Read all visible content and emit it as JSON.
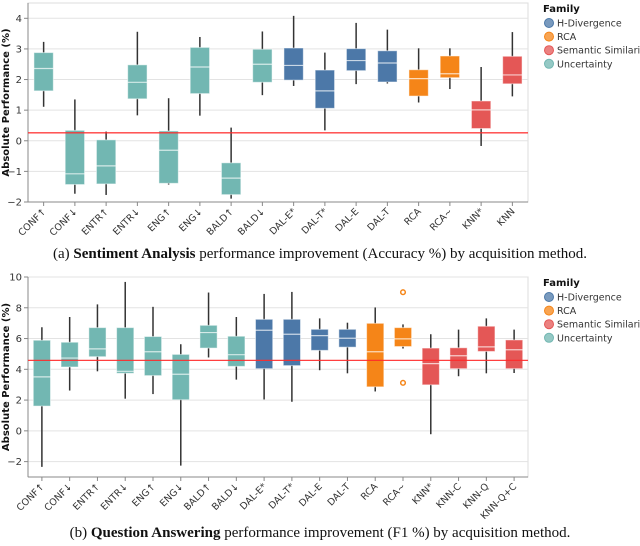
{
  "captions": [
    {
      "prefix": "(a)",
      "bold": "Sentiment Analysis",
      "rest": "performance improvement (Accuracy %) by acquisition method."
    },
    {
      "prefix": "(b)",
      "bold": "Question Answering",
      "rest": "performance improvement (F1 %) by acquisition method."
    }
  ],
  "colors": {
    "Uncertainty": "#72b7b2",
    "H-Divergence": "#4c78a8",
    "RCA": "#f58518",
    "Semantic Similarity": "#e45756",
    "reference_line": "#ff2a2a"
  },
  "chart_data": [
    {
      "type": "boxplot",
      "ylabel": "Absolute Performance (%)",
      "ylim": [
        -2,
        4.5
      ],
      "yticks": [
        -2,
        -1,
        0,
        1,
        2,
        3,
        4
      ],
      "grid": true,
      "reference_line": 0.26,
      "legend": {
        "title": "Family",
        "placement": "right",
        "entries": [
          "H-Divergence",
          "RCA",
          "Semantic Similarity",
          "Uncertainty"
        ]
      },
      "boxes": [
        {
          "label": "CONF↑",
          "family": "Uncertainty",
          "min": 1.11,
          "q1": 1.63,
          "median": 2.36,
          "q3": 2.88,
          "max": 3.23
        },
        {
          "label": "CONF↓",
          "family": "Uncertainty",
          "min": -1.73,
          "q1": -1.43,
          "median": -1.08,
          "q3": 0.34,
          "max": 1.35
        },
        {
          "label": "ENTR↑",
          "family": "Uncertainty",
          "min": -1.77,
          "q1": -1.41,
          "median": -0.82,
          "q3": 0.03,
          "max": 0.3
        },
        {
          "label": "ENTR↓",
          "family": "Uncertainty",
          "min": 0.83,
          "q1": 1.37,
          "median": 1.91,
          "q3": 2.48,
          "max": 3.56
        },
        {
          "label": "ENG↑",
          "family": "Uncertainty",
          "min": -1.43,
          "q1": -1.39,
          "median": -0.31,
          "q3": 0.32,
          "max": 1.39
        },
        {
          "label": "ENG↓",
          "family": "Uncertainty",
          "min": 0.82,
          "q1": 1.54,
          "median": 2.41,
          "q3": 3.05,
          "max": 3.39
        },
        {
          "label": "BALD↑",
          "family": "Uncertainty",
          "min": -1.89,
          "q1": -1.76,
          "median": -1.22,
          "q3": -0.72,
          "max": 0.43
        },
        {
          "label": "BALD↓",
          "family": "Uncertainty",
          "min": 1.49,
          "q1": 1.91,
          "median": 2.5,
          "q3": 2.99,
          "max": 3.57
        },
        {
          "label": "DAL-E*",
          "family": "H-Divergence",
          "min": 1.79,
          "q1": 1.98,
          "median": 2.46,
          "q3": 3.03,
          "max": 4.08
        },
        {
          "label": "DAL-T*",
          "family": "H-Divergence",
          "min": 0.34,
          "q1": 1.06,
          "median": 1.63,
          "q3": 2.31,
          "max": 2.88
        },
        {
          "label": "DAL-E",
          "family": "H-Divergence",
          "min": 1.85,
          "q1": 2.29,
          "median": 2.62,
          "q3": 3.01,
          "max": 3.85
        },
        {
          "label": "DAL-T",
          "family": "H-Divergence",
          "min": 1.87,
          "q1": 1.92,
          "median": 2.54,
          "q3": 2.94,
          "max": 3.63
        },
        {
          "label": "RCA",
          "family": "RCA",
          "min": 1.25,
          "q1": 1.46,
          "median": 2.03,
          "q3": 2.32,
          "max": 3.02
        },
        {
          "label": "RCA~",
          "family": "RCA",
          "min": 1.69,
          "q1": 2.06,
          "median": 2.19,
          "q3": 2.77,
          "max": 3.02
        },
        {
          "label": "KNN*",
          "family": "Semantic Similarity",
          "min": -0.17,
          "q1": 0.4,
          "median": 1.01,
          "q3": 1.3,
          "max": 2.41
        },
        {
          "label": "KNN",
          "family": "Semantic Similarity",
          "min": 1.45,
          "q1": 1.86,
          "median": 2.15,
          "q3": 2.76,
          "max": 3.55
        }
      ]
    },
    {
      "type": "boxplot",
      "ylabel": "Absolute Performance (%)",
      "ylim": [
        -3,
        10
      ],
      "yticks": [
        -2,
        0,
        2,
        4,
        6,
        8,
        10
      ],
      "grid": true,
      "reference_line": 4.58,
      "legend": {
        "title": "Family",
        "placement": "right",
        "entries": [
          "H-Divergence",
          "RCA",
          "Semantic Similarity",
          "Uncertainty"
        ]
      },
      "boxes": [
        {
          "label": "CONF↑",
          "family": "Uncertainty",
          "min": -2.34,
          "q1": 1.61,
          "median": 3.51,
          "q3": 5.89,
          "max": 6.73
        },
        {
          "label": "CONF↓",
          "family": "Uncertainty",
          "min": 2.62,
          "q1": 4.15,
          "median": 4.73,
          "q3": 5.76,
          "max": 7.4
        },
        {
          "label": "ENTR↑",
          "family": "Uncertainty",
          "min": 3.87,
          "q1": 4.82,
          "median": 5.33,
          "q3": 6.71,
          "max": 8.22
        },
        {
          "label": "ENTR↓",
          "family": "Uncertainty",
          "min": 2.09,
          "q1": 3.74,
          "median": 3.87,
          "q3": 6.71,
          "max": 9.68
        },
        {
          "label": "ENG↑",
          "family": "Uncertainty",
          "min": 2.39,
          "q1": 3.59,
          "median": 5.14,
          "q3": 6.13,
          "max": 8.06
        },
        {
          "label": "ENG↓",
          "family": "Uncertainty",
          "min": -2.26,
          "q1": 2.02,
          "median": 3.68,
          "q3": 4.97,
          "max": 5.63
        },
        {
          "label": "BALD↑",
          "family": "Uncertainty",
          "min": 4.77,
          "q1": 5.38,
          "median": 6.39,
          "q3": 6.86,
          "max": 8.99
        },
        {
          "label": "BALD↓",
          "family": "Uncertainty",
          "min": 3.33,
          "q1": 4.19,
          "median": 4.95,
          "q3": 6.15,
          "max": 7.4
        },
        {
          "label": "DAL-E*",
          "family": "H-Divergence",
          "min": 2.04,
          "q1": 4.04,
          "median": 6.54,
          "q3": 7.25,
          "max": 8.9
        },
        {
          "label": "DAL-T*",
          "family": "H-Divergence",
          "min": 1.89,
          "q1": 4.24,
          "median": 6.28,
          "q3": 7.25,
          "max": 9.03
        },
        {
          "label": "DAL-E",
          "family": "H-Divergence",
          "min": 3.94,
          "q1": 5.23,
          "median": 6.19,
          "q3": 6.6,
          "max": 7.31
        },
        {
          "label": "DAL-T",
          "family": "H-Divergence",
          "min": 3.74,
          "q1": 5.44,
          "median": 6.02,
          "q3": 6.6,
          "max": 7.03
        },
        {
          "label": "RCA",
          "family": "RCA",
          "min": 2.56,
          "q1": 2.86,
          "median": 5.14,
          "q3": 6.99,
          "max": 8.02
        },
        {
          "label": "RCA~",
          "family": "RCA",
          "min": 5.35,
          "q1": 5.48,
          "median": 5.98,
          "q3": 6.71,
          "max": 6.92,
          "outliers": [
            9.01,
            3.12
          ]
        },
        {
          "label": "KNN*",
          "family": "Semantic Similarity",
          "min": -0.22,
          "q1": 2.99,
          "median": 4.37,
          "q3": 5.38,
          "max": 6.28
        },
        {
          "label": "KNN-C",
          "family": "Semantic Similarity",
          "min": 3.55,
          "q1": 4.04,
          "median": 4.88,
          "q3": 5.4,
          "max": 6.58
        },
        {
          "label": "KNN-Q",
          "family": "Semantic Similarity",
          "min": 3.74,
          "q1": 5.16,
          "median": 5.46,
          "q3": 6.8,
          "max": 7.31
        },
        {
          "label": "KNN-Q+C",
          "family": "Semantic Similarity",
          "min": 3.76,
          "q1": 4.04,
          "median": 5.27,
          "q3": 5.91,
          "max": 6.58
        }
      ]
    }
  ]
}
